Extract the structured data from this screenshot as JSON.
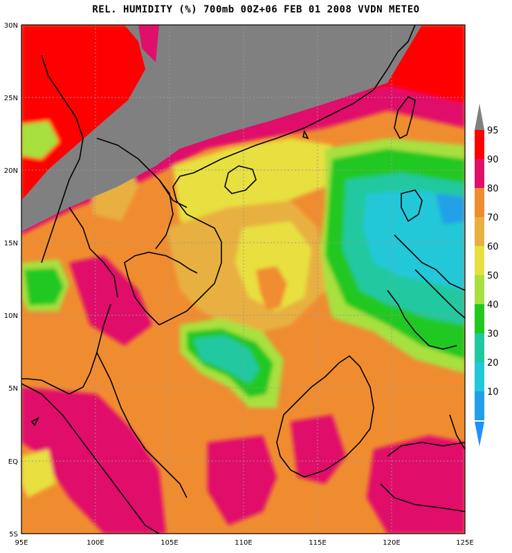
{
  "title": "REL. HUMIDITY (%) 700mb 00Z+06 FEB 01 2008 VVDN METEO",
  "map": {
    "lon_range": [
      95,
      125
    ],
    "lat_range": [
      -5,
      30
    ],
    "lon_ticks": [
      "95E",
      "100E",
      "105E",
      "110E",
      "115E",
      "120E",
      "125E"
    ],
    "lat_ticks": [
      "5S",
      "EQ",
      "5N",
      "10N",
      "15N",
      "20N",
      "25N",
      "30N"
    ],
    "grid": "dotted",
    "missing_color": "#808080"
  },
  "legend": {
    "levels": [
      "95",
      "90",
      "80",
      "70",
      "60",
      "50",
      "40",
      "30",
      "20",
      "10"
    ],
    "colors": [
      "#ff0000",
      "#e0106a",
      "#f08c30",
      "#e8b040",
      "#e8e040",
      "#a8e040",
      "#20c820",
      "#20c8a0",
      "#20c8d8",
      "#20a0e8"
    ],
    "top_arrow_color": "#808080",
    "bottom_arrow_color": "#1e90ff"
  }
}
